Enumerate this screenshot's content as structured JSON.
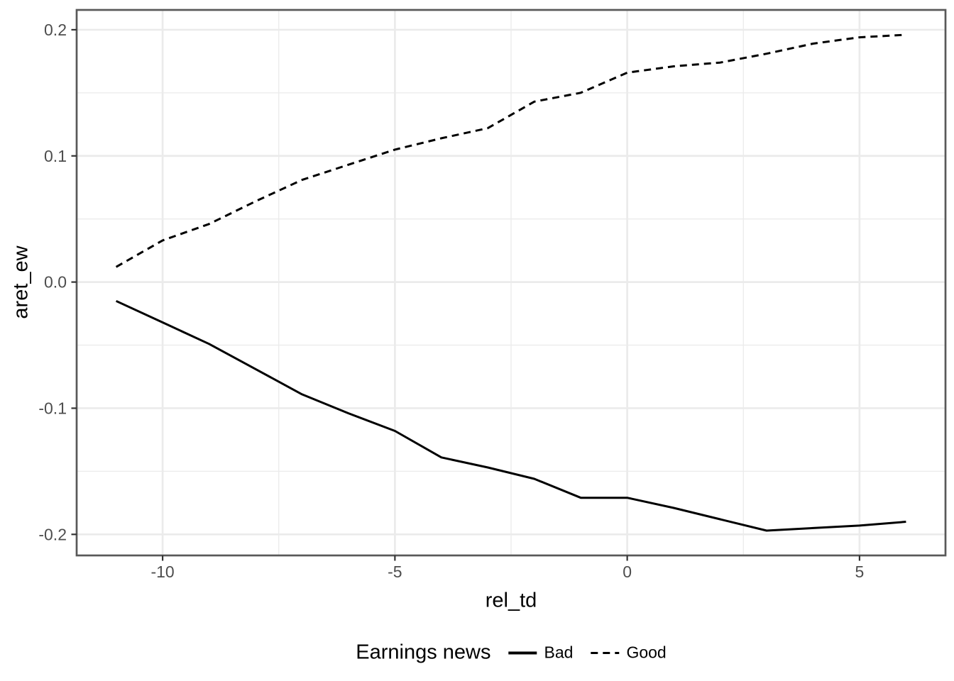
{
  "chart_data": {
    "type": "line",
    "title": "",
    "xlabel": "rel_td",
    "ylabel": "aret_ew",
    "legend_title": "Earnings news",
    "legend_position": "bottom",
    "grid": true,
    "xlim": [
      -11.85,
      6.85
    ],
    "ylim": [
      -0.2167,
      0.2157
    ],
    "x_major_ticks": [
      -10,
      -5,
      0,
      5
    ],
    "x_tick_labels": [
      "-10",
      "-5",
      "0",
      "5"
    ],
    "x_minor_ticks": [
      -7.5,
      -2.5,
      2.5
    ],
    "y_major_ticks": [
      0.2,
      0.1,
      0.0,
      -0.1,
      -0.2
    ],
    "y_tick_labels": [
      "0.2",
      "0.1",
      "0.0",
      "-0.1",
      "-0.2"
    ],
    "y_minor_ticks": [
      0.15,
      0.05,
      -0.05,
      -0.15
    ],
    "x": [
      -11,
      -10,
      -9,
      -8,
      -7,
      -6,
      -5,
      -4,
      -3,
      -2,
      -1,
      0,
      1,
      2,
      3,
      4,
      5,
      6
    ],
    "series": [
      {
        "name": "Bad",
        "style": "solid",
        "values": [
          -0.015,
          -0.032,
          -0.049,
          -0.069,
          -0.089,
          -0.104,
          -0.118,
          -0.139,
          -0.147,
          -0.156,
          -0.171,
          -0.171,
          -0.179,
          -0.188,
          -0.197,
          -0.195,
          -0.193,
          -0.19
        ]
      },
      {
        "name": "Good",
        "style": "dashed",
        "values": [
          0.012,
          0.033,
          0.046,
          0.064,
          0.081,
          0.093,
          0.105,
          0.114,
          0.122,
          0.143,
          0.15,
          0.166,
          0.171,
          0.174,
          0.181,
          0.189,
          0.194,
          0.196
        ]
      }
    ],
    "colors": {
      "line": "#000000",
      "grid": "#ebebeb",
      "panel_border": "#595959",
      "tick": "#333333",
      "tick_label": "#4d4d4d",
      "background": "#ffffff"
    }
  }
}
